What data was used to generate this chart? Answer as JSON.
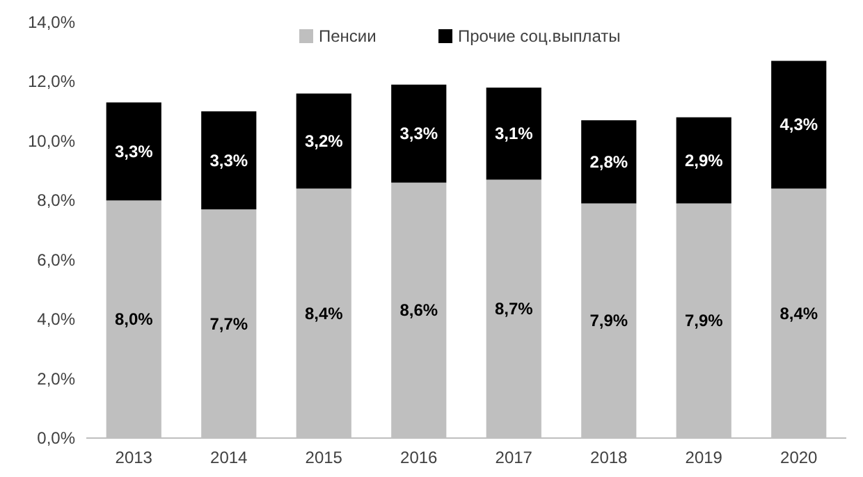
{
  "chart_data": {
    "type": "bar",
    "stacked": true,
    "categories": [
      "2013",
      "2014",
      "2015",
      "2016",
      "2017",
      "2018",
      "2019",
      "2020"
    ],
    "series": [
      {
        "name": "Пенсии",
        "color": "#bfbfbf",
        "values": [
          8.0,
          7.7,
          8.4,
          8.6,
          8.7,
          7.9,
          7.9,
          8.4
        ],
        "value_labels": [
          "8,0%",
          "7,7%",
          "8,4%",
          "8,6%",
          "8,7%",
          "7,9%",
          "7,9%",
          "8,4%"
        ]
      },
      {
        "name": "Прочие соц.выплаты",
        "color": "#000000",
        "values": [
          3.3,
          3.3,
          3.2,
          3.3,
          3.1,
          2.8,
          2.9,
          4.3
        ],
        "value_labels": [
          "3,3%",
          "3,3%",
          "3,2%",
          "3,3%",
          "3,1%",
          "2,8%",
          "2,9%",
          "4,3%"
        ]
      }
    ],
    "ylim": [
      0,
      14
    ],
    "yticks": [
      {
        "value": 0,
        "label": "0,0%"
      },
      {
        "value": 2,
        "label": "2,0%"
      },
      {
        "value": 4,
        "label": "4,0%"
      },
      {
        "value": 6,
        "label": "6,0%"
      },
      {
        "value": 8,
        "label": "8,0%"
      },
      {
        "value": 10,
        "label": "10,0%"
      },
      {
        "value": 12,
        "label": "12,0%"
      },
      {
        "value": 14,
        "label": "14,0%"
      }
    ],
    "grid": false,
    "legend": "top"
  }
}
